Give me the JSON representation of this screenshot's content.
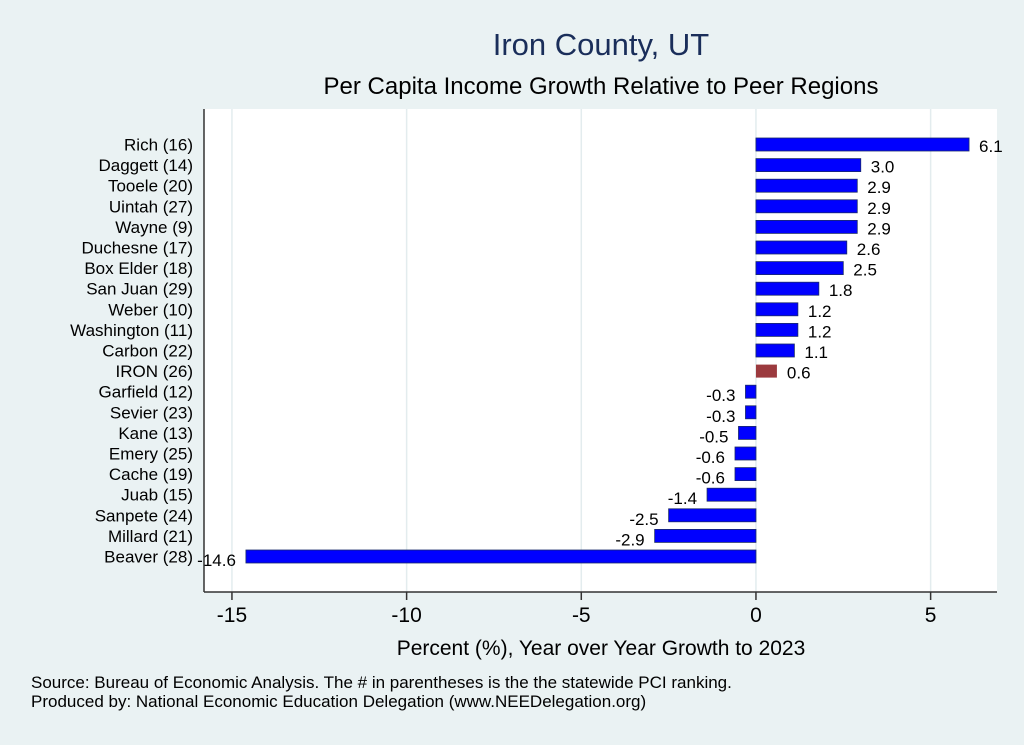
{
  "chart_data": {
    "type": "bar",
    "orientation": "horizontal",
    "title": "Iron County, UT",
    "subtitle": "Per Capita Income Growth Relative to Peer Regions",
    "xlabel": "Percent (%), Year over Year Growth to 2023",
    "ylabel": "",
    "xlim": [
      -15.8,
      6.9
    ],
    "xticks": [
      -15,
      -10,
      -5,
      0,
      5
    ],
    "xtick_labels": [
      "-15",
      "-10",
      "-5",
      "0",
      "5"
    ],
    "grid": true,
    "legend": "none",
    "categories": [
      "Rich (16)",
      "Daggett (14)",
      "Tooele (20)",
      "Uintah (27)",
      "Wayne  (9)",
      "Duchesne (17)",
      "Box Elder (18)",
      "San Juan (29)",
      "Weber (10)",
      "Washington (11)",
      "Carbon (22)",
      "IRON (26)",
      "Garfield (12)",
      "Sevier (23)",
      "Kane (13)",
      "Emery (25)",
      "Cache (19)",
      "Juab (15)",
      "Sanpete (24)",
      "Millard (21)",
      "Beaver (28)"
    ],
    "values": [
      6.1,
      3.0,
      2.9,
      2.9,
      2.9,
      2.6,
      2.5,
      1.8,
      1.2,
      1.2,
      1.1,
      0.6,
      -0.3,
      -0.3,
      -0.5,
      -0.6,
      -0.6,
      -1.4,
      -2.5,
      -2.9,
      -14.6
    ],
    "value_labels": [
      "6.1",
      "3.0",
      "2.9",
      "2.9",
      "2.9",
      "2.6",
      "2.5",
      "1.8",
      "1.2",
      "1.2",
      "1.1",
      "0.6",
      "-0.3",
      "-0.3",
      "-0.5",
      "-0.6",
      "-0.6",
      "-1.4",
      "-2.5",
      "-2.9",
      "-14.6"
    ],
    "highlight_index": 11,
    "colors": {
      "default": "#0000ff",
      "highlight": "#9b3a3e",
      "bar_edge": "#1a2a6a"
    }
  },
  "footnotes": {
    "source": "Source: Bureau of Economic Analysis. The # in parentheses is the the statewide PCI ranking.",
    "produced_by": "Produced by: National Economic Education Delegation (www.NEEDelegation.org)"
  }
}
